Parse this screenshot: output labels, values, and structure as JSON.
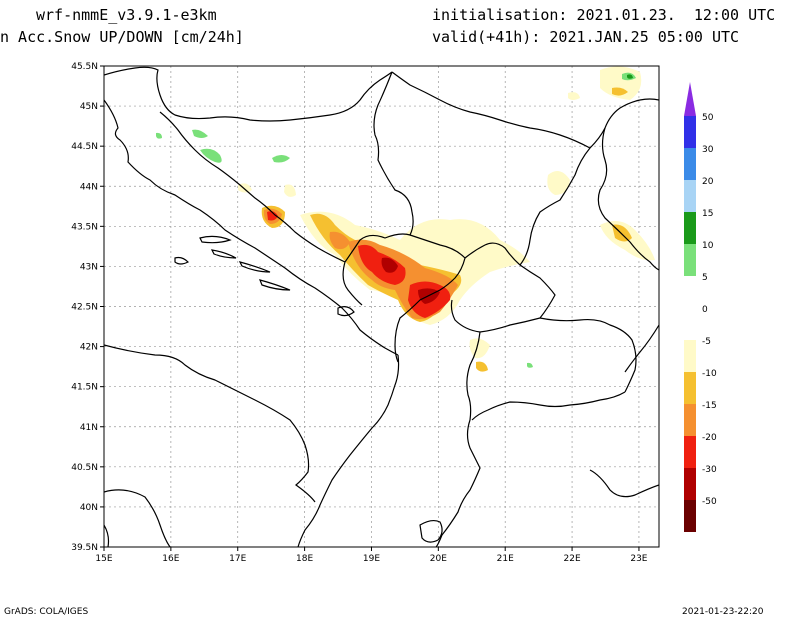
{
  "header": {
    "model": "wrf-nmmE_v3.9.1-e3km",
    "variable": "n Acc.Snow UP/DOWN [cm/24h]",
    "init": "initialisation: 2021.01.23.  12:00 UTC",
    "valid": "valid(+41h): 2021.JAN.25 05:00 UTC"
  },
  "map": {
    "x_ticks": [
      "15E",
      "16E",
      "17E",
      "18E",
      "19E",
      "20E",
      "21E",
      "22E",
      "23E"
    ],
    "y_ticks": [
      "45.5N",
      "45N",
      "44.5N",
      "44N",
      "43.5N",
      "43N",
      "42.5N",
      "42N",
      "41.5N",
      "41N",
      "40.5N",
      "40N",
      "39.5N"
    ],
    "lon_range": [
      15,
      23.3
    ],
    "lat_range": [
      39.5,
      45.5
    ]
  },
  "colorbar": {
    "labels": [
      "50",
      "30",
      "20",
      "15",
      "10",
      "5",
      "0",
      "-5",
      "-10",
      "-15",
      "-20",
      "-30",
      "-50"
    ],
    "colors": [
      "#3030e8",
      "#3b8be8",
      "#a8d4f5",
      "#1a9a1a",
      "#7ae07a",
      "#ffffff",
      "#ffffff",
      "#fffac8",
      "#f5c030",
      "#f59030",
      "#f02010",
      "#b00000",
      "#6a0000"
    ],
    "top_arrow_color": "#8a2be2",
    "bottom_arrow_color": "#6a0000"
  },
  "footer": {
    "left": "GrADS: COLA/IGES",
    "right": "2021-01-23-22:20"
  }
}
